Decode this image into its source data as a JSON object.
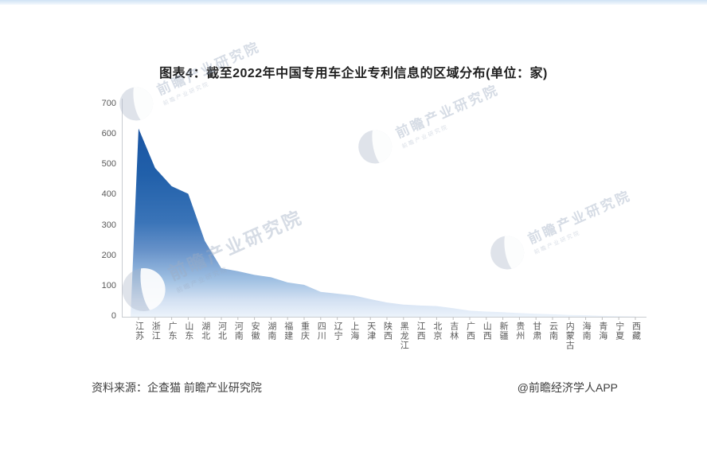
{
  "page": {
    "title": "图表4：截至2022年中国专用车企业专利信息的区域分布(单位：家)"
  },
  "chart_data": {
    "type": "area",
    "title": "图表4：截至2022年中国专用车企业专利信息的区域分布(单位：家)",
    "unit": "家",
    "categories": [
      "江苏",
      "浙江",
      "广东",
      "山东",
      "湖北",
      "河北",
      "河南",
      "安徽",
      "湖南",
      "福建",
      "重庆",
      "四川",
      "辽宁",
      "上海",
      "天津",
      "陕西",
      "黑龙江",
      "江西",
      "北京",
      "吉林",
      "广西",
      "山西",
      "新疆",
      "贵州",
      "甘肃",
      "云南",
      "内蒙古",
      "海南",
      "青海",
      "宁夏",
      "西藏"
    ],
    "values": [
      620,
      490,
      430,
      405,
      250,
      160,
      150,
      138,
      130,
      113,
      105,
      82,
      76,
      70,
      58,
      47,
      40,
      37,
      35,
      28,
      20,
      17,
      15,
      12,
      10,
      8,
      6,
      5,
      3,
      2,
      1
    ],
    "xlabel": "",
    "ylabel": "",
    "ylim": [
      0,
      700
    ],
    "yticks": [
      0,
      100,
      200,
      300,
      400,
      500,
      600,
      700
    ],
    "grid": false,
    "legend": false,
    "colors": {
      "area_top": "#1b55a3",
      "area_mid": "#3a74b8",
      "area_light": "#9ebfe2",
      "area_bottom": "#ecf3fb",
      "axis_line": "#c9ccd1",
      "tick": "#bfbfbf",
      "axis_text": "#595959"
    }
  },
  "watermark": {
    "text": "前瞻产业研究院",
    "subtext": "前瞻产业研究院"
  },
  "footer": {
    "source": "资料来源：企查猫 前瞻产业研究院",
    "credit": "@前瞻经济学人APP"
  }
}
